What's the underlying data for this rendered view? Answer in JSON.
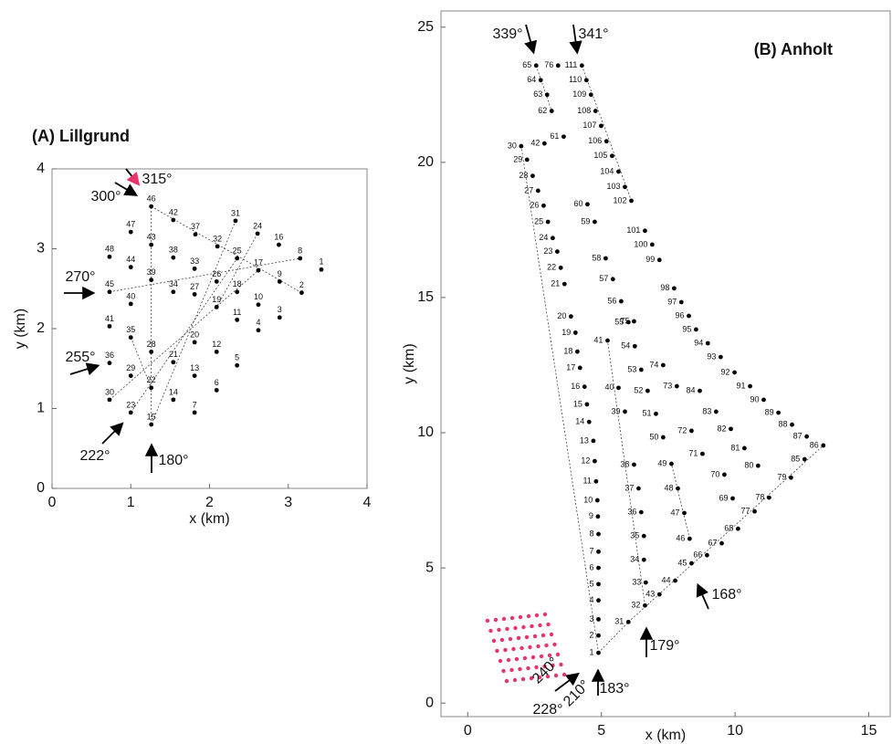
{
  "chart_data": [
    {
      "type": "scatter",
      "title": "(A) Lillgrund",
      "xlabel": "x (km)",
      "ylabel": "y (km)",
      "xlim": [
        0,
        4
      ],
      "ylim": [
        0,
        4
      ],
      "xticks": [
        0,
        1,
        2,
        3,
        4
      ],
      "yticks": [
        0,
        1,
        2,
        3,
        4
      ],
      "color": "#000000",
      "point_labels": [
        "1",
        "2",
        "3",
        "4",
        "5",
        "6",
        "7",
        "8",
        "9",
        "10",
        "11",
        "12",
        "13",
        "14",
        "15",
        "16",
        "17",
        "18",
        "19",
        "20",
        "21",
        "22",
        "23",
        "24",
        "25",
        "26",
        "27",
        "28",
        "29",
        "30",
        "31",
        "32",
        "33",
        "34",
        "35",
        "36",
        "37",
        "38",
        "39",
        "40",
        "41",
        "42",
        "43",
        "44",
        "45",
        "46",
        "47",
        "48"
      ],
      "x": [
        3.42,
        3.17,
        2.89,
        2.62,
        2.35,
        2.09,
        1.81,
        3.15,
        2.89,
        2.62,
        2.35,
        2.09,
        1.81,
        1.54,
        1.26,
        2.88,
        2.62,
        2.35,
        2.09,
        1.81,
        1.54,
        1.26,
        1.0,
        2.61,
        2.35,
        2.09,
        1.81,
        1.26,
        1.0,
        0.73,
        2.33,
        2.1,
        1.81,
        1.54,
        1.0,
        0.73,
        1.82,
        1.54,
        1.26,
        1.0,
        0.73,
        1.54,
        1.26,
        1.0,
        0.73,
        1.26,
        1.0,
        0.73
      ],
      "y": [
        2.74,
        2.45,
        2.14,
        1.98,
        1.54,
        1.23,
        0.95,
        2.88,
        2.59,
        2.3,
        2.11,
        1.71,
        1.41,
        1.11,
        0.8,
        3.05,
        2.73,
        2.46,
        2.27,
        1.83,
        1.58,
        1.26,
        0.95,
        3.19,
        2.88,
        2.59,
        2.43,
        1.71,
        1.41,
        1.11,
        3.35,
        3.03,
        2.75,
        2.46,
        1.89,
        1.57,
        3.18,
        2.89,
        2.61,
        2.31,
        2.03,
        3.36,
        3.05,
        2.77,
        2.46,
        3.53,
        3.21,
        2.9
      ],
      "annotations": [
        {
          "text": "315°",
          "color": "#e8336b"
        },
        {
          "text": "300°",
          "color": "#000000"
        },
        {
          "text": "270°",
          "color": "#000000"
        },
        {
          "text": "255°",
          "color": "#000000"
        },
        {
          "text": "222°",
          "color": "#000000"
        },
        {
          "text": "180°",
          "color": "#000000"
        }
      ]
    },
    {
      "type": "scatter",
      "title": "(B) Anholt",
      "xlabel": "x (km)",
      "ylabel": "y (km)",
      "xlim": [
        -1,
        15.8
      ],
      "ylim": [
        -0.5,
        25.6
      ],
      "xticks": [
        0,
        5,
        10,
        15
      ],
      "yticks": [
        0,
        5,
        10,
        15,
        20,
        25
      ],
      "color": "#000000",
      "point_labels": [
        "1",
        "2",
        "3",
        "4",
        "5",
        "6",
        "7",
        "8",
        "9",
        "10",
        "11",
        "12",
        "13",
        "14",
        "15",
        "16",
        "17",
        "18",
        "19",
        "20",
        "21",
        "22",
        "23",
        "24",
        "25",
        "26",
        "27",
        "28",
        "29",
        "30",
        "31",
        "32",
        "33",
        "34",
        "35",
        "36",
        "37",
        "38",
        "39",
        "40",
        "41",
        "42",
        "43",
        "44",
        "45",
        "46",
        "47",
        "48",
        "49",
        "50",
        "51",
        "52",
        "53",
        "54",
        "55",
        "56",
        "57",
        "58",
        "59",
        "60",
        "61",
        "62",
        "63",
        "64",
        "65",
        "66",
        "67",
        "68",
        "69",
        "70",
        "71",
        "72",
        "73",
        "74",
        "75",
        "76",
        "77",
        "78",
        "79",
        "80",
        "81",
        "82",
        "83",
        "84",
        "85",
        "86",
        "87",
        "88",
        "89",
        "90",
        "91",
        "92",
        "93",
        "94",
        "95",
        "96",
        "97",
        "98",
        "99",
        "100",
        "101",
        "102",
        "103",
        "104",
        "105",
        "106",
        "107",
        "108",
        "109",
        "110",
        "111"
      ],
      "x": [
        4.89,
        4.89,
        4.89,
        4.89,
        4.89,
        4.89,
        4.89,
        4.89,
        4.87,
        4.85,
        4.8,
        4.75,
        4.7,
        4.54,
        4.46,
        4.37,
        4.2,
        4.1,
        4.03,
        3.86,
        3.62,
        3.48,
        3.35,
        3.18,
        3.0,
        2.84,
        2.63,
        2.43,
        2.22,
        2.0,
        6.01,
        6.63,
        6.66,
        6.59,
        6.59,
        6.49,
        6.39,
        6.22,
        5.88,
        5.64,
        5.23,
        2.87,
        7.17,
        7.76,
        8.37,
        8.3,
        8.1,
        7.86,
        7.62,
        7.31,
        7.04,
        6.73,
        6.49,
        6.25,
        6.01,
        5.74,
        5.43,
        5.16,
        4.75,
        4.48,
        3.59,
        3.14,
        2.97,
        2.73,
        2.56,
        8.95,
        9.5,
        10.11,
        9.91,
        9.6,
        8.78,
        8.37,
        7.82,
        7.31,
        6.22,
        3.38,
        10.73,
        11.27,
        12.09,
        10.86,
        10.35,
        9.84,
        9.29,
        8.68,
        12.6,
        13.3,
        12.68,
        12.13,
        11.62,
        11.07,
        10.56,
        9.98,
        9.46,
        8.98,
        8.54,
        8.27,
        7.99,
        7.72,
        7.17,
        6.9,
        6.63,
        6.12,
        5.88,
        5.64,
        5.4,
        5.19,
        4.99,
        4.78,
        4.61,
        4.44,
        4.27
      ],
      "y": [
        1.86,
        2.5,
        3.1,
        3.8,
        4.4,
        5.0,
        5.6,
        6.25,
        6.9,
        7.5,
        8.2,
        8.95,
        9.7,
        10.4,
        11.05,
        11.7,
        12.4,
        13.0,
        13.7,
        14.3,
        15.5,
        16.1,
        16.7,
        17.2,
        17.8,
        18.4,
        18.95,
        19.5,
        20.1,
        20.6,
        3.0,
        3.61,
        4.46,
        5.3,
        6.18,
        7.06,
        7.94,
        8.82,
        10.78,
        11.66,
        13.41,
        20.7,
        4.02,
        4.53,
        5.17,
        6.08,
        7.03,
        7.94,
        8.85,
        9.83,
        10.7,
        11.55,
        12.33,
        13.2,
        14.09,
        14.86,
        15.68,
        16.45,
        17.8,
        18.45,
        20.95,
        21.9,
        22.5,
        23.04,
        23.58,
        5.47,
        5.91,
        6.45,
        7.57,
        8.45,
        9.22,
        10.07,
        11.72,
        12.5,
        14.12,
        23.58,
        7.09,
        7.6,
        8.34,
        8.78,
        9.43,
        10.14,
        10.78,
        11.55,
        9.02,
        9.53,
        9.86,
        10.3,
        10.74,
        11.22,
        11.72,
        12.23,
        12.8,
        13.31,
        13.82,
        14.32,
        14.83,
        15.34,
        16.39,
        16.96,
        17.47,
        18.58,
        19.09,
        19.66,
        20.24,
        20.78,
        21.35,
        21.9,
        22.5,
        23.04,
        23.58
      ],
      "annotations": [
        {
          "text": "339°",
          "color": "#000000"
        },
        {
          "text": "341°",
          "color": "#000000"
        },
        {
          "text": "168°",
          "color": "#000000"
        },
        {
          "text": "179°",
          "color": "#000000"
        },
        {
          "text": "183°",
          "color": "#000000"
        },
        {
          "text": "228°",
          "color": "#000000"
        },
        {
          "text": "240°",
          "color": "#e8336b"
        },
        {
          "text": "210°",
          "color": "#e8336b"
        }
      ]
    }
  ]
}
